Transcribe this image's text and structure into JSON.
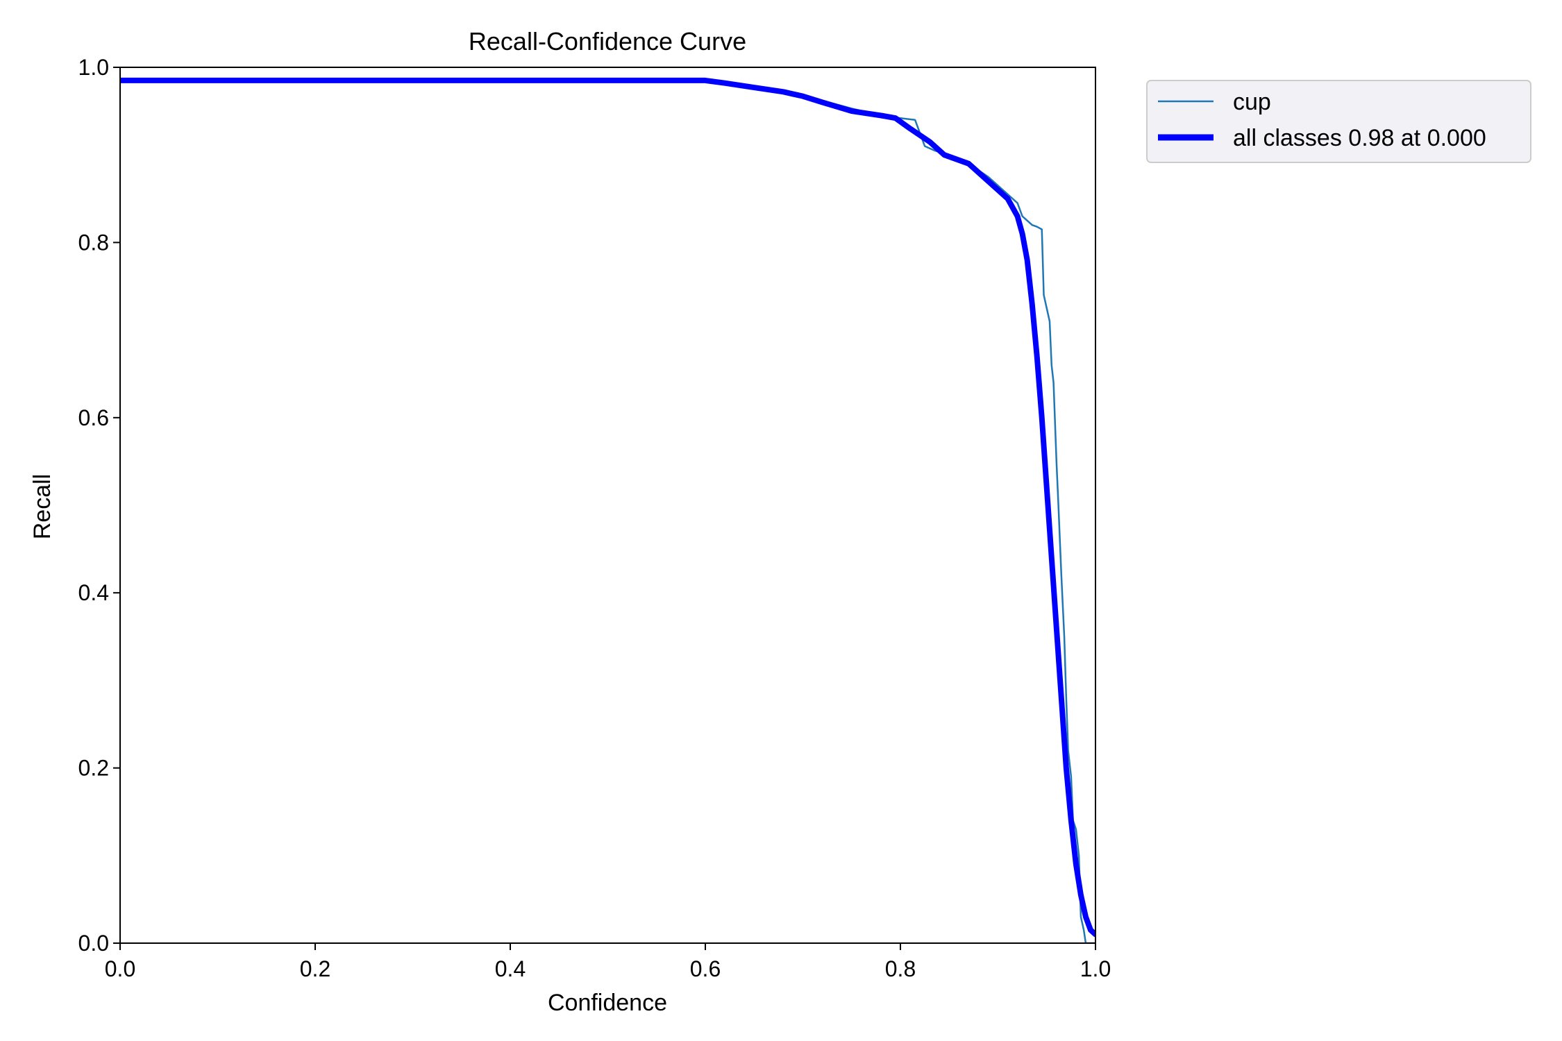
{
  "chart_data": {
    "type": "line",
    "title": "Recall-Confidence Curve",
    "xlabel": "Confidence",
    "ylabel": "Recall",
    "xlim": [
      0,
      1
    ],
    "ylim": [
      0,
      1
    ],
    "xticks": [
      "0.0",
      "0.2",
      "0.4",
      "0.6",
      "0.8",
      "1.0"
    ],
    "yticks": [
      "0.0",
      "0.2",
      "0.4",
      "0.6",
      "0.8",
      "1.0"
    ],
    "grid": false,
    "legend_position": "outside-top-right",
    "series": [
      {
        "name": "cup",
        "color": "#1f77b4",
        "line_style": "thin",
        "x": [
          0.0,
          0.1,
          0.2,
          0.3,
          0.4,
          0.5,
          0.6,
          0.62,
          0.65,
          0.68,
          0.7,
          0.72,
          0.75,
          0.78,
          0.8,
          0.815,
          0.82,
          0.825,
          0.835,
          0.85,
          0.87,
          0.89,
          0.905,
          0.92,
          0.925,
          0.93,
          0.935,
          0.94,
          0.945,
          0.947,
          0.95,
          0.953,
          0.955,
          0.957,
          0.96,
          0.962,
          0.965,
          0.968,
          0.97,
          0.972,
          0.975,
          0.977,
          0.98,
          0.983,
          0.985,
          0.988,
          0.99,
          1.0
        ],
        "y": [
          0.985,
          0.985,
          0.985,
          0.985,
          0.985,
          0.985,
          0.985,
          0.982,
          0.977,
          0.972,
          0.967,
          0.962,
          0.953,
          0.945,
          0.942,
          0.94,
          0.925,
          0.91,
          0.905,
          0.9,
          0.89,
          0.875,
          0.86,
          0.845,
          0.83,
          0.825,
          0.82,
          0.818,
          0.815,
          0.74,
          0.725,
          0.71,
          0.66,
          0.64,
          0.55,
          0.5,
          0.42,
          0.35,
          0.28,
          0.22,
          0.19,
          0.14,
          0.13,
          0.1,
          0.03,
          0.015,
          0.0,
          0.0
        ]
      },
      {
        "name": "all classes 0.98 at 0.000",
        "color": "#0000ff",
        "line_style": "thick",
        "x": [
          0.0,
          0.1,
          0.2,
          0.3,
          0.4,
          0.5,
          0.6,
          0.62,
          0.65,
          0.68,
          0.7,
          0.72,
          0.75,
          0.78,
          0.795,
          0.81,
          0.83,
          0.845,
          0.87,
          0.89,
          0.91,
          0.92,
          0.925,
          0.93,
          0.935,
          0.94,
          0.945,
          0.95,
          0.955,
          0.96,
          0.965,
          0.97,
          0.975,
          0.98,
          0.985,
          0.99,
          0.995,
          1.0
        ],
        "y": [
          0.985,
          0.985,
          0.985,
          0.985,
          0.985,
          0.985,
          0.985,
          0.982,
          0.977,
          0.972,
          0.967,
          0.96,
          0.95,
          0.945,
          0.942,
          0.93,
          0.915,
          0.9,
          0.89,
          0.87,
          0.85,
          0.83,
          0.81,
          0.78,
          0.73,
          0.67,
          0.6,
          0.52,
          0.44,
          0.36,
          0.28,
          0.2,
          0.14,
          0.09,
          0.055,
          0.03,
          0.015,
          0.01
        ]
      }
    ]
  }
}
